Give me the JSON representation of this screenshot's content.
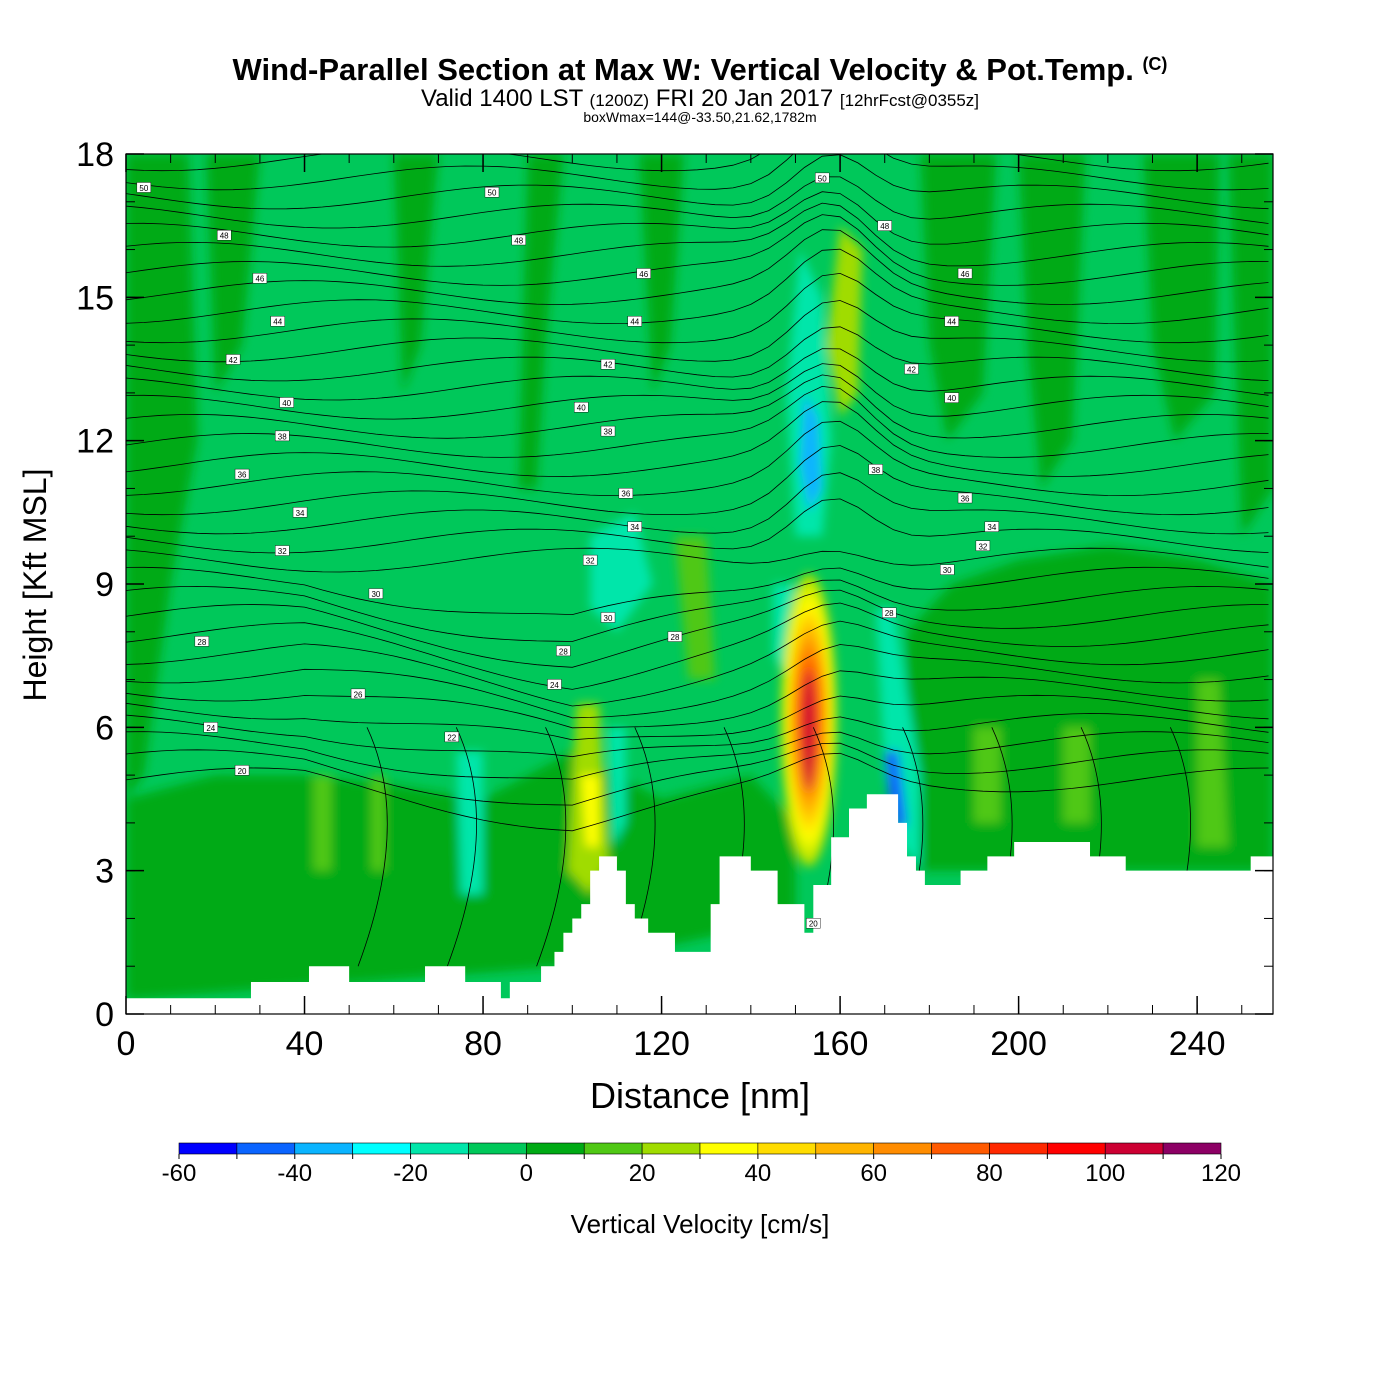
{
  "title": {
    "main": "Wind-Parallel Section at Max W: Vertical Velocity & Pot.Temp.",
    "copyright": "(C)"
  },
  "subtitle": {
    "valid": "Valid 1400 LST",
    "zulu": "(1200Z)",
    "date": "FRI 20 Jan 2017",
    "forecast": "[12hrFcst@0355z]"
  },
  "note": "boxWmax=144@-33.50,21.62,1782m",
  "chart_data": {
    "type": "heatmap",
    "xlabel": "Distance [nm]",
    "ylabel": "Height [Kft MSL]",
    "xlim": [
      0,
      257
    ],
    "ylim": [
      0,
      18
    ],
    "x_ticks": [
      "0",
      "40",
      "80",
      "120",
      "160",
      "200",
      "240"
    ],
    "y_ticks": [
      "0",
      "3",
      "6",
      "9",
      "12",
      "15",
      "18"
    ],
    "colorbar": {
      "label": "Vertical Velocity [cm/s]",
      "tick_labels": [
        "-60",
        "-40",
        "-20",
        "0",
        "20",
        "40",
        "60",
        "80",
        "100",
        "120"
      ],
      "levels": [
        -60,
        -50,
        -40,
        -30,
        -20,
        -10,
        0,
        10,
        20,
        30,
        40,
        50,
        60,
        70,
        80,
        90,
        100,
        110,
        120
      ],
      "colors": [
        "#0000ff",
        "#0a64ff",
        "#0ab4ff",
        "#00ffff",
        "#00e6aa",
        "#00c85a",
        "#00aa14",
        "#50c814",
        "#a0dc00",
        "#ffff00",
        "#ffdc00",
        "#ffb400",
        "#ff8c00",
        "#ff5a00",
        "#ff2800",
        "#ff0000",
        "#cc0032",
        "#8c0064"
      ]
    },
    "max_updraft": {
      "x": 153,
      "y_range": [
        3.5,
        8.8
      ],
      "peak": 100
    },
    "terrain": [
      {
        "x": 0,
        "y": 0.33
      },
      {
        "x": 28,
        "y": 0.33
      },
      {
        "x": 28,
        "y": 0.67
      },
      {
        "x": 41,
        "y": 0.67
      },
      {
        "x": 41,
        "y": 1.0
      },
      {
        "x": 50,
        "y": 1.0
      },
      {
        "x": 50,
        "y": 0.67
      },
      {
        "x": 67,
        "y": 0.67
      },
      {
        "x": 67,
        "y": 1.0
      },
      {
        "x": 76,
        "y": 1.0
      },
      {
        "x": 76,
        "y": 0.67
      },
      {
        "x": 84,
        "y": 0.67
      },
      {
        "x": 84,
        "y": 0.33
      },
      {
        "x": 86,
        "y": 0.33
      },
      {
        "x": 86,
        "y": 0.67
      },
      {
        "x": 93,
        "y": 0.67
      },
      {
        "x": 93,
        "y": 1.0
      },
      {
        "x": 96,
        "y": 1.0
      },
      {
        "x": 96,
        "y": 1.3
      },
      {
        "x": 98,
        "y": 1.3
      },
      {
        "x": 98,
        "y": 1.7
      },
      {
        "x": 100,
        "y": 1.7
      },
      {
        "x": 100,
        "y": 2.0
      },
      {
        "x": 102,
        "y": 2.0
      },
      {
        "x": 102,
        "y": 2.3
      },
      {
        "x": 104,
        "y": 2.3
      },
      {
        "x": 104,
        "y": 3.0
      },
      {
        "x": 106,
        "y": 3.0
      },
      {
        "x": 106,
        "y": 3.3
      },
      {
        "x": 110,
        "y": 3.3
      },
      {
        "x": 110,
        "y": 3.0
      },
      {
        "x": 112,
        "y": 3.0
      },
      {
        "x": 112,
        "y": 2.3
      },
      {
        "x": 114,
        "y": 2.3
      },
      {
        "x": 114,
        "y": 2.0
      },
      {
        "x": 117,
        "y": 2.0
      },
      {
        "x": 117,
        "y": 1.7
      },
      {
        "x": 123,
        "y": 1.7
      },
      {
        "x": 123,
        "y": 1.3
      },
      {
        "x": 131,
        "y": 1.3
      },
      {
        "x": 131,
        "y": 2.3
      },
      {
        "x": 133,
        "y": 2.3
      },
      {
        "x": 133,
        "y": 3.3
      },
      {
        "x": 140,
        "y": 3.3
      },
      {
        "x": 140,
        "y": 3.0
      },
      {
        "x": 146,
        "y": 3.0
      },
      {
        "x": 146,
        "y": 2.3
      },
      {
        "x": 152,
        "y": 2.3
      },
      {
        "x": 152,
        "y": 1.7
      },
      {
        "x": 154,
        "y": 1.7
      },
      {
        "x": 154,
        "y": 2.7
      },
      {
        "x": 158,
        "y": 2.7
      },
      {
        "x": 158,
        "y": 3.7
      },
      {
        "x": 162,
        "y": 3.7
      },
      {
        "x": 162,
        "y": 4.3
      },
      {
        "x": 166,
        "y": 4.3
      },
      {
        "x": 166,
        "y": 4.6
      },
      {
        "x": 173,
        "y": 4.6
      },
      {
        "x": 173,
        "y": 4.0
      },
      {
        "x": 175,
        "y": 4.0
      },
      {
        "x": 175,
        "y": 3.3
      },
      {
        "x": 177,
        "y": 3.3
      },
      {
        "x": 177,
        "y": 3.0
      },
      {
        "x": 179,
        "y": 3.0
      },
      {
        "x": 179,
        "y": 2.7
      },
      {
        "x": 187,
        "y": 2.7
      },
      {
        "x": 187,
        "y": 3.0
      },
      {
        "x": 193,
        "y": 3.0
      },
      {
        "x": 193,
        "y": 3.3
      },
      {
        "x": 199,
        "y": 3.3
      },
      {
        "x": 199,
        "y": 3.6
      },
      {
        "x": 216,
        "y": 3.6
      },
      {
        "x": 216,
        "y": 3.3
      },
      {
        "x": 224,
        "y": 3.3
      },
      {
        "x": 224,
        "y": 3.0
      },
      {
        "x": 252,
        "y": 3.0
      },
      {
        "x": 252,
        "y": 3.3
      },
      {
        "x": 257,
        "y": 3.3
      }
    ],
    "theta_labels": [
      {
        "text": "50",
        "x": 4,
        "y": 17.3
      },
      {
        "text": "50",
        "x": 82,
        "y": 17.2
      },
      {
        "text": "50",
        "x": 156,
        "y": 17.5
      },
      {
        "text": "48",
        "x": 22,
        "y": 16.3
      },
      {
        "text": "48",
        "x": 88,
        "y": 16.2
      },
      {
        "text": "48",
        "x": 170,
        "y": 16.5
      },
      {
        "text": "46",
        "x": 30,
        "y": 15.4
      },
      {
        "text": "46",
        "x": 116,
        "y": 15.5
      },
      {
        "text": "46",
        "x": 188,
        "y": 15.5
      },
      {
        "text": "44",
        "x": 34,
        "y": 14.5
      },
      {
        "text": "44",
        "x": 114,
        "y": 14.5
      },
      {
        "text": "44",
        "x": 185,
        "y": 14.5
      },
      {
        "text": "42",
        "x": 24,
        "y": 13.7
      },
      {
        "text": "42",
        "x": 108,
        "y": 13.6
      },
      {
        "text": "42",
        "x": 176,
        "y": 13.5
      },
      {
        "text": "40",
        "x": 36,
        "y": 12.8
      },
      {
        "text": "40",
        "x": 102,
        "y": 12.7
      },
      {
        "text": "40",
        "x": 185,
        "y": 12.9
      },
      {
        "text": "38",
        "x": 35,
        "y": 12.1
      },
      {
        "text": "38",
        "x": 108,
        "y": 12.2
      },
      {
        "text": "38",
        "x": 168,
        "y": 11.4
      },
      {
        "text": "36",
        "x": 26,
        "y": 11.3
      },
      {
        "text": "36",
        "x": 112,
        "y": 10.9
      },
      {
        "text": "36",
        "x": 188,
        "y": 10.8
      },
      {
        "text": "34",
        "x": 39,
        "y": 10.5
      },
      {
        "text": "34",
        "x": 114,
        "y": 10.2
      },
      {
        "text": "34",
        "x": 194,
        "y": 10.2
      },
      {
        "text": "32",
        "x": 35,
        "y": 9.7
      },
      {
        "text": "32",
        "x": 104,
        "y": 9.5
      },
      {
        "text": "32",
        "x": 192,
        "y": 9.8
      },
      {
        "text": "30",
        "x": 56,
        "y": 8.8
      },
      {
        "text": "30",
        "x": 108,
        "y": 8.3
      },
      {
        "text": "30",
        "x": 184,
        "y": 9.3
      },
      {
        "text": "28",
        "x": 17,
        "y": 7.8
      },
      {
        "text": "28",
        "x": 98,
        "y": 7.6
      },
      {
        "text": "28",
        "x": 123,
        "y": 7.9
      },
      {
        "text": "28",
        "x": 171,
        "y": 8.4
      },
      {
        "text": "26",
        "x": 52,
        "y": 6.7
      },
      {
        "text": "24",
        "x": 96,
        "y": 6.9
      },
      {
        "text": "24",
        "x": 19,
        "y": 6.0
      },
      {
        "text": "22",
        "x": 73,
        "y": 5.8
      },
      {
        "text": "20",
        "x": 26,
        "y": 5.1
      },
      {
        "text": "20",
        "x": 154,
        "y": 1.9
      }
    ]
  }
}
